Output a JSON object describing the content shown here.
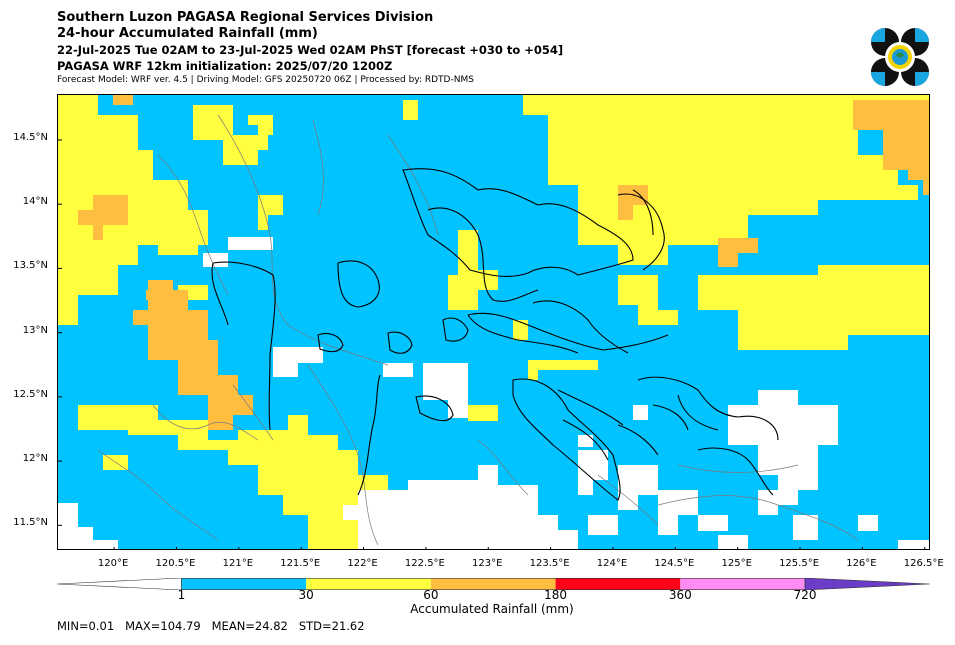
{
  "header": {
    "line1": "Southern Luzon PAGASA Regional Services Division",
    "line2": "24-hour Accumulated Rainfall (mm)",
    "line3": "22-Jul-2025 Tue 02AM to 23-Jul-2025 Wed 02AM PhST [forecast +030 to +054]",
    "line4": "PAGASA WRF 12km initialization: 2025/07/20 1200Z",
    "line5": "Forecast Model: WRF ver. 4.5 | Driving Model: GFS 20250720 06Z | Processed by: RDTD-NMS"
  },
  "map": {
    "lat_ticks": [
      "14.5°N",
      "14°N",
      "13.5°N",
      "13°N",
      "12.5°N",
      "12°N",
      "11.5°N"
    ],
    "lon_ticks": [
      "120°E",
      "120.5°E",
      "121°E",
      "121.5°E",
      "122°E",
      "122.5°E",
      "123°E",
      "123.5°E",
      "124°E",
      "124.5°E",
      "125°E",
      "125.5°E",
      "126°E",
      "126.5°E"
    ],
    "lon_range": [
      119.55,
      126.55
    ],
    "lat_range": [
      11.3,
      14.85
    ],
    "dominant_category": "1-30 mm"
  },
  "colorbar": {
    "title": "Accumulated Rainfall (mm)",
    "labels": [
      "1",
      "30",
      "60",
      "180",
      "360",
      "720"
    ],
    "colors": [
      "#ffffff",
      "#00c3ff",
      "#ffff40",
      "#ffbe40",
      "#ff0019",
      "#ff8cf5",
      "#6a3cc8"
    ]
  },
  "stats": {
    "text": "MIN=0.01   MAX=104.79   MEAN=24.82   STD=21.62"
  }
}
